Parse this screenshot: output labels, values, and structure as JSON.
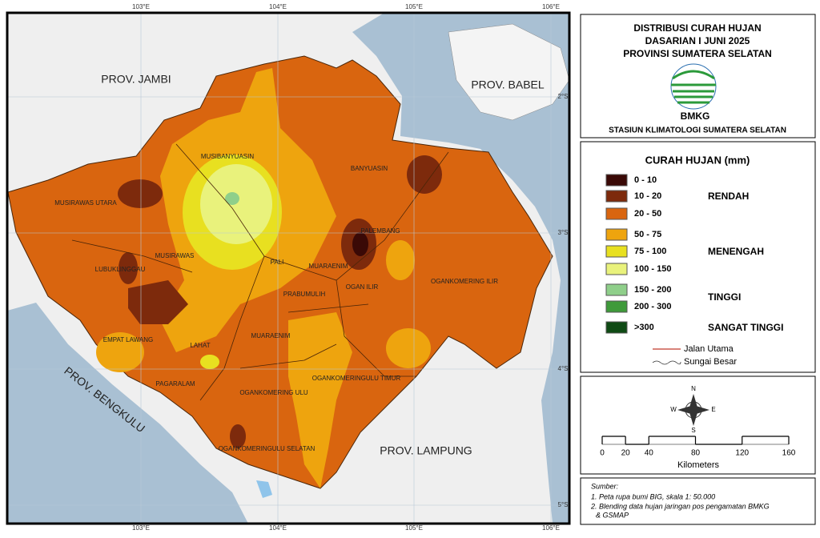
{
  "header": {
    "title_lines": [
      "DISTRIBUSI CURAH HUJAN",
      "DASARIAN I JUNI 2025",
      "PROVINSI SUMATERA SELATAN"
    ],
    "logo_text": "BMKG",
    "station": "STASIUN KLIMATOLOGI SUMATERA SELATAN"
  },
  "legend": {
    "title": "CURAH HUJAN (mm)",
    "classes": [
      {
        "label": "0 - 10",
        "color": "#3a0906"
      },
      {
        "label": "10 - 20",
        "color": "#7d2a0c"
      },
      {
        "label": "20 - 50",
        "color": "#d9650f"
      },
      {
        "label": "50 - 75",
        "color": "#eea40e"
      },
      {
        "label": "75 - 100",
        "color": "#e8e020"
      },
      {
        "label": "100 - 150",
        "color": "#e9f27c"
      },
      {
        "label": "150 - 200",
        "color": "#8fcf8a"
      },
      {
        "label": "200 - 300",
        "color": "#3f9a3a"
      },
      {
        "label": ">300",
        "color": "#0f4a14"
      }
    ],
    "categories": [
      "RENDAH",
      "MENENGAH",
      "TINGGI",
      "SANGAT TINGGI"
    ],
    "lines": [
      "Jalan Utama",
      "Sungai Besar"
    ]
  },
  "scale": {
    "compass": [
      "N",
      "S",
      "W",
      "E"
    ],
    "ticks": [
      0,
      20,
      40,
      80,
      120,
      160
    ],
    "unit": "Kilometers"
  },
  "source": {
    "title": "Sumber:",
    "notes": [
      "1. Peta rupa bumi BIG, skala 1: 50.000",
      "2. Blending data hujan jaringan pos pengamatan BMKG",
      "& GSMAP"
    ]
  },
  "map": {
    "lon_labels": [
      "103°E",
      "104°E",
      "105°E",
      "106°E"
    ],
    "lat_labels": [
      "2°S",
      "3°S",
      "4°S",
      "5°S"
    ],
    "provinces": [
      "PROV. JAMBI",
      "PROV. BABEL",
      "PROV. BENGKULU",
      "PROV. LAMPUNG"
    ],
    "regencies": [
      "MUSIBANYUASIN",
      "BANYUASIN",
      "MUSIRAWAS UTARA",
      "PALEMBANG",
      "MUSIRAWAS",
      "LUBUKLINGGAU",
      "PALI",
      "MUARAENIM",
      "OGAN ILIR",
      "OGANKOMERING ILIR",
      "PRABUMULIH",
      "EMPAT LAWANG",
      "LAHAT",
      "PAGARALAM",
      "OGANKOMERING ULU",
      "OGANKOMERINGULU TIMUR",
      "OGANKOMERINGULU SELATAN"
    ]
  }
}
